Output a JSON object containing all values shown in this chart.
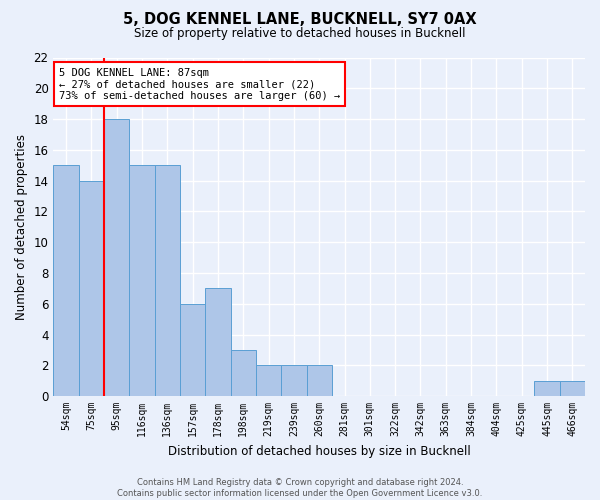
{
  "title": "5, DOG KENNEL LANE, BUCKNELL, SY7 0AX",
  "subtitle": "Size of property relative to detached houses in Bucknell",
  "xlabel": "Distribution of detached houses by size in Bucknell",
  "ylabel": "Number of detached properties",
  "categories": [
    "54sqm",
    "75sqm",
    "95sqm",
    "116sqm",
    "136sqm",
    "157sqm",
    "178sqm",
    "198sqm",
    "219sqm",
    "239sqm",
    "260sqm",
    "281sqm",
    "301sqm",
    "322sqm",
    "342sqm",
    "363sqm",
    "384sqm",
    "404sqm",
    "425sqm",
    "445sqm",
    "466sqm"
  ],
  "values": [
    15,
    14,
    18,
    15,
    15,
    6,
    7,
    3,
    2,
    2,
    2,
    0,
    0,
    0,
    0,
    0,
    0,
    0,
    0,
    1,
    1
  ],
  "bar_color": "#aec6e8",
  "bar_edge_color": "#5a9fd4",
  "red_line_x": 1.5,
  "annotation_text": "5 DOG KENNEL LANE: 87sqm\n← 27% of detached houses are smaller (22)\n73% of semi-detached houses are larger (60) →",
  "annotation_box_color": "white",
  "annotation_box_edge_color": "red",
  "ylim": [
    0,
    22
  ],
  "yticks": [
    0,
    2,
    4,
    6,
    8,
    10,
    12,
    14,
    16,
    18,
    20,
    22
  ],
  "background_color": "#eaf0fb",
  "grid_color": "#ffffff",
  "footer": "Contains HM Land Registry data © Crown copyright and database right 2024.\nContains public sector information licensed under the Open Government Licence v3.0."
}
